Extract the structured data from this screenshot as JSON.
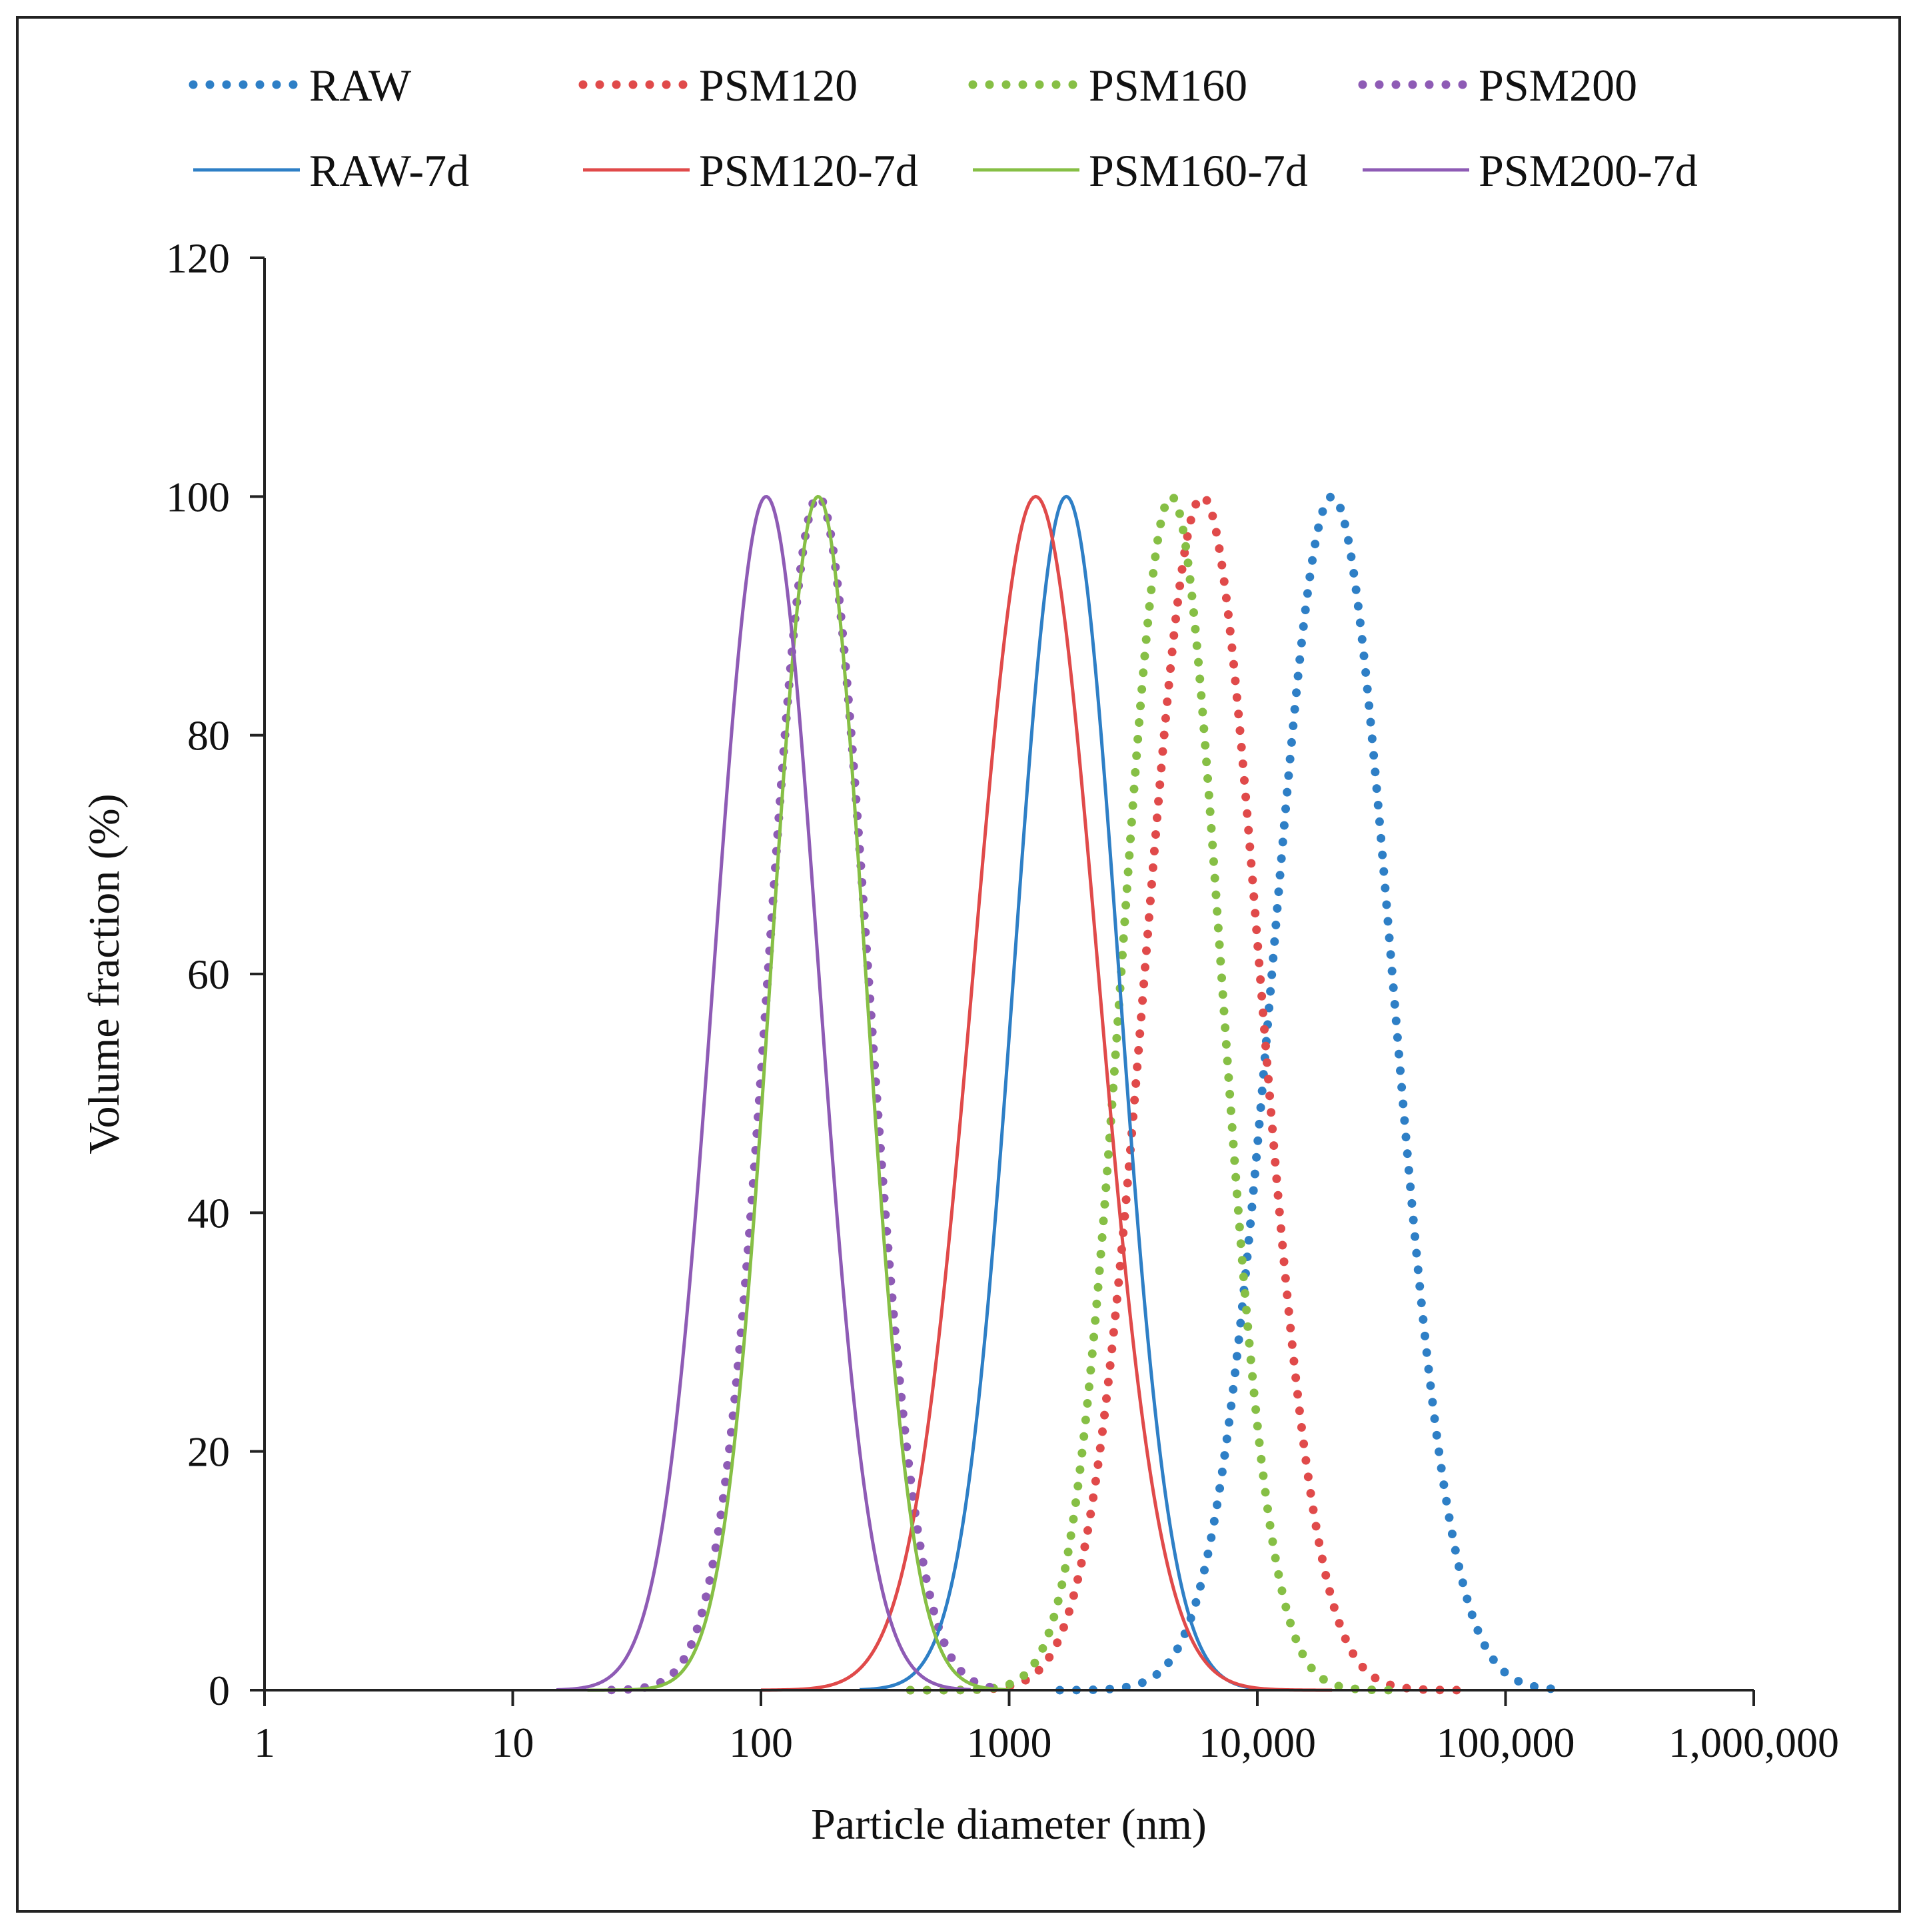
{
  "chart_data": {
    "type": "line",
    "xscale": "log",
    "xlabel": "Particle diameter (nm)",
    "ylabel": "Volume fraction (%)",
    "xlim": [
      1,
      1000000
    ],
    "ylim": [
      0,
      120
    ],
    "x_ticks": [
      {
        "value": 1,
        "label": "1"
      },
      {
        "value": 10,
        "label": "10"
      },
      {
        "value": 100,
        "label": "100"
      },
      {
        "value": 1000,
        "label": "1000"
      },
      {
        "value": 10000,
        "label": "10,000"
      },
      {
        "value": 100000,
        "label": "100,000"
      },
      {
        "value": 1000000,
        "label": "1,000,000"
      }
    ],
    "y_ticks": [
      {
        "value": 0,
        "label": "0"
      },
      {
        "value": 20,
        "label": "20"
      },
      {
        "value": 40,
        "label": "40"
      },
      {
        "value": 60,
        "label": "60"
      },
      {
        "value": 80,
        "label": "80"
      },
      {
        "value": 100,
        "label": "100"
      },
      {
        "value": 120,
        "label": "120"
      }
    ],
    "grid": false,
    "legend_position": "top",
    "series": [
      {
        "name": "RAW",
        "style": "dotted",
        "color": "#2e7fc6",
        "peak_x": 20000,
        "peak_y": 100,
        "sigma_log10": 0.24,
        "x_range": [
          1600,
          170000
        ]
      },
      {
        "name": "PSM120",
        "style": "dotted",
        "color": "#e04a4a",
        "peak_x": 6000,
        "peak_y": 100,
        "sigma_log10": 0.23,
        "x_range": [
          400,
          70000
        ]
      },
      {
        "name": "PSM160",
        "style": "dotted",
        "color": "#86bf45",
        "peak_x": 4500,
        "peak_y": 100,
        "sigma_log10": 0.2,
        "x_range": [
          400,
          35000
        ]
      },
      {
        "name": "PSM200",
        "style": "dotted",
        "color": "#8e5bb5",
        "peak_x": 170,
        "peak_y": 100,
        "sigma_log10": 0.2,
        "x_range": [
          25,
          900
        ]
      },
      {
        "name": "RAW-7d",
        "style": "solid",
        "color": "#2e7fc6",
        "peak_x": 1700,
        "peak_y": 100,
        "sigma_log10": 0.21,
        "x_range": [
          250,
          10000
        ]
      },
      {
        "name": "PSM120-7d",
        "style": "solid",
        "color": "#e04a4a",
        "peak_x": 1280,
        "peak_y": 100,
        "sigma_log10": 0.25,
        "x_range": [
          100,
          20000
        ]
      },
      {
        "name": "PSM160-7d",
        "style": "solid",
        "color": "#86bf45",
        "peak_x": 170,
        "peak_y": 100,
        "sigma_log10": 0.19,
        "x_range": [
          20,
          1000
        ]
      },
      {
        "name": "PSM200-7d",
        "style": "solid",
        "color": "#8e5bb5",
        "peak_x": 105,
        "peak_y": 100,
        "sigma_log10": 0.21,
        "x_range": [
          15,
          700
        ]
      }
    ]
  }
}
